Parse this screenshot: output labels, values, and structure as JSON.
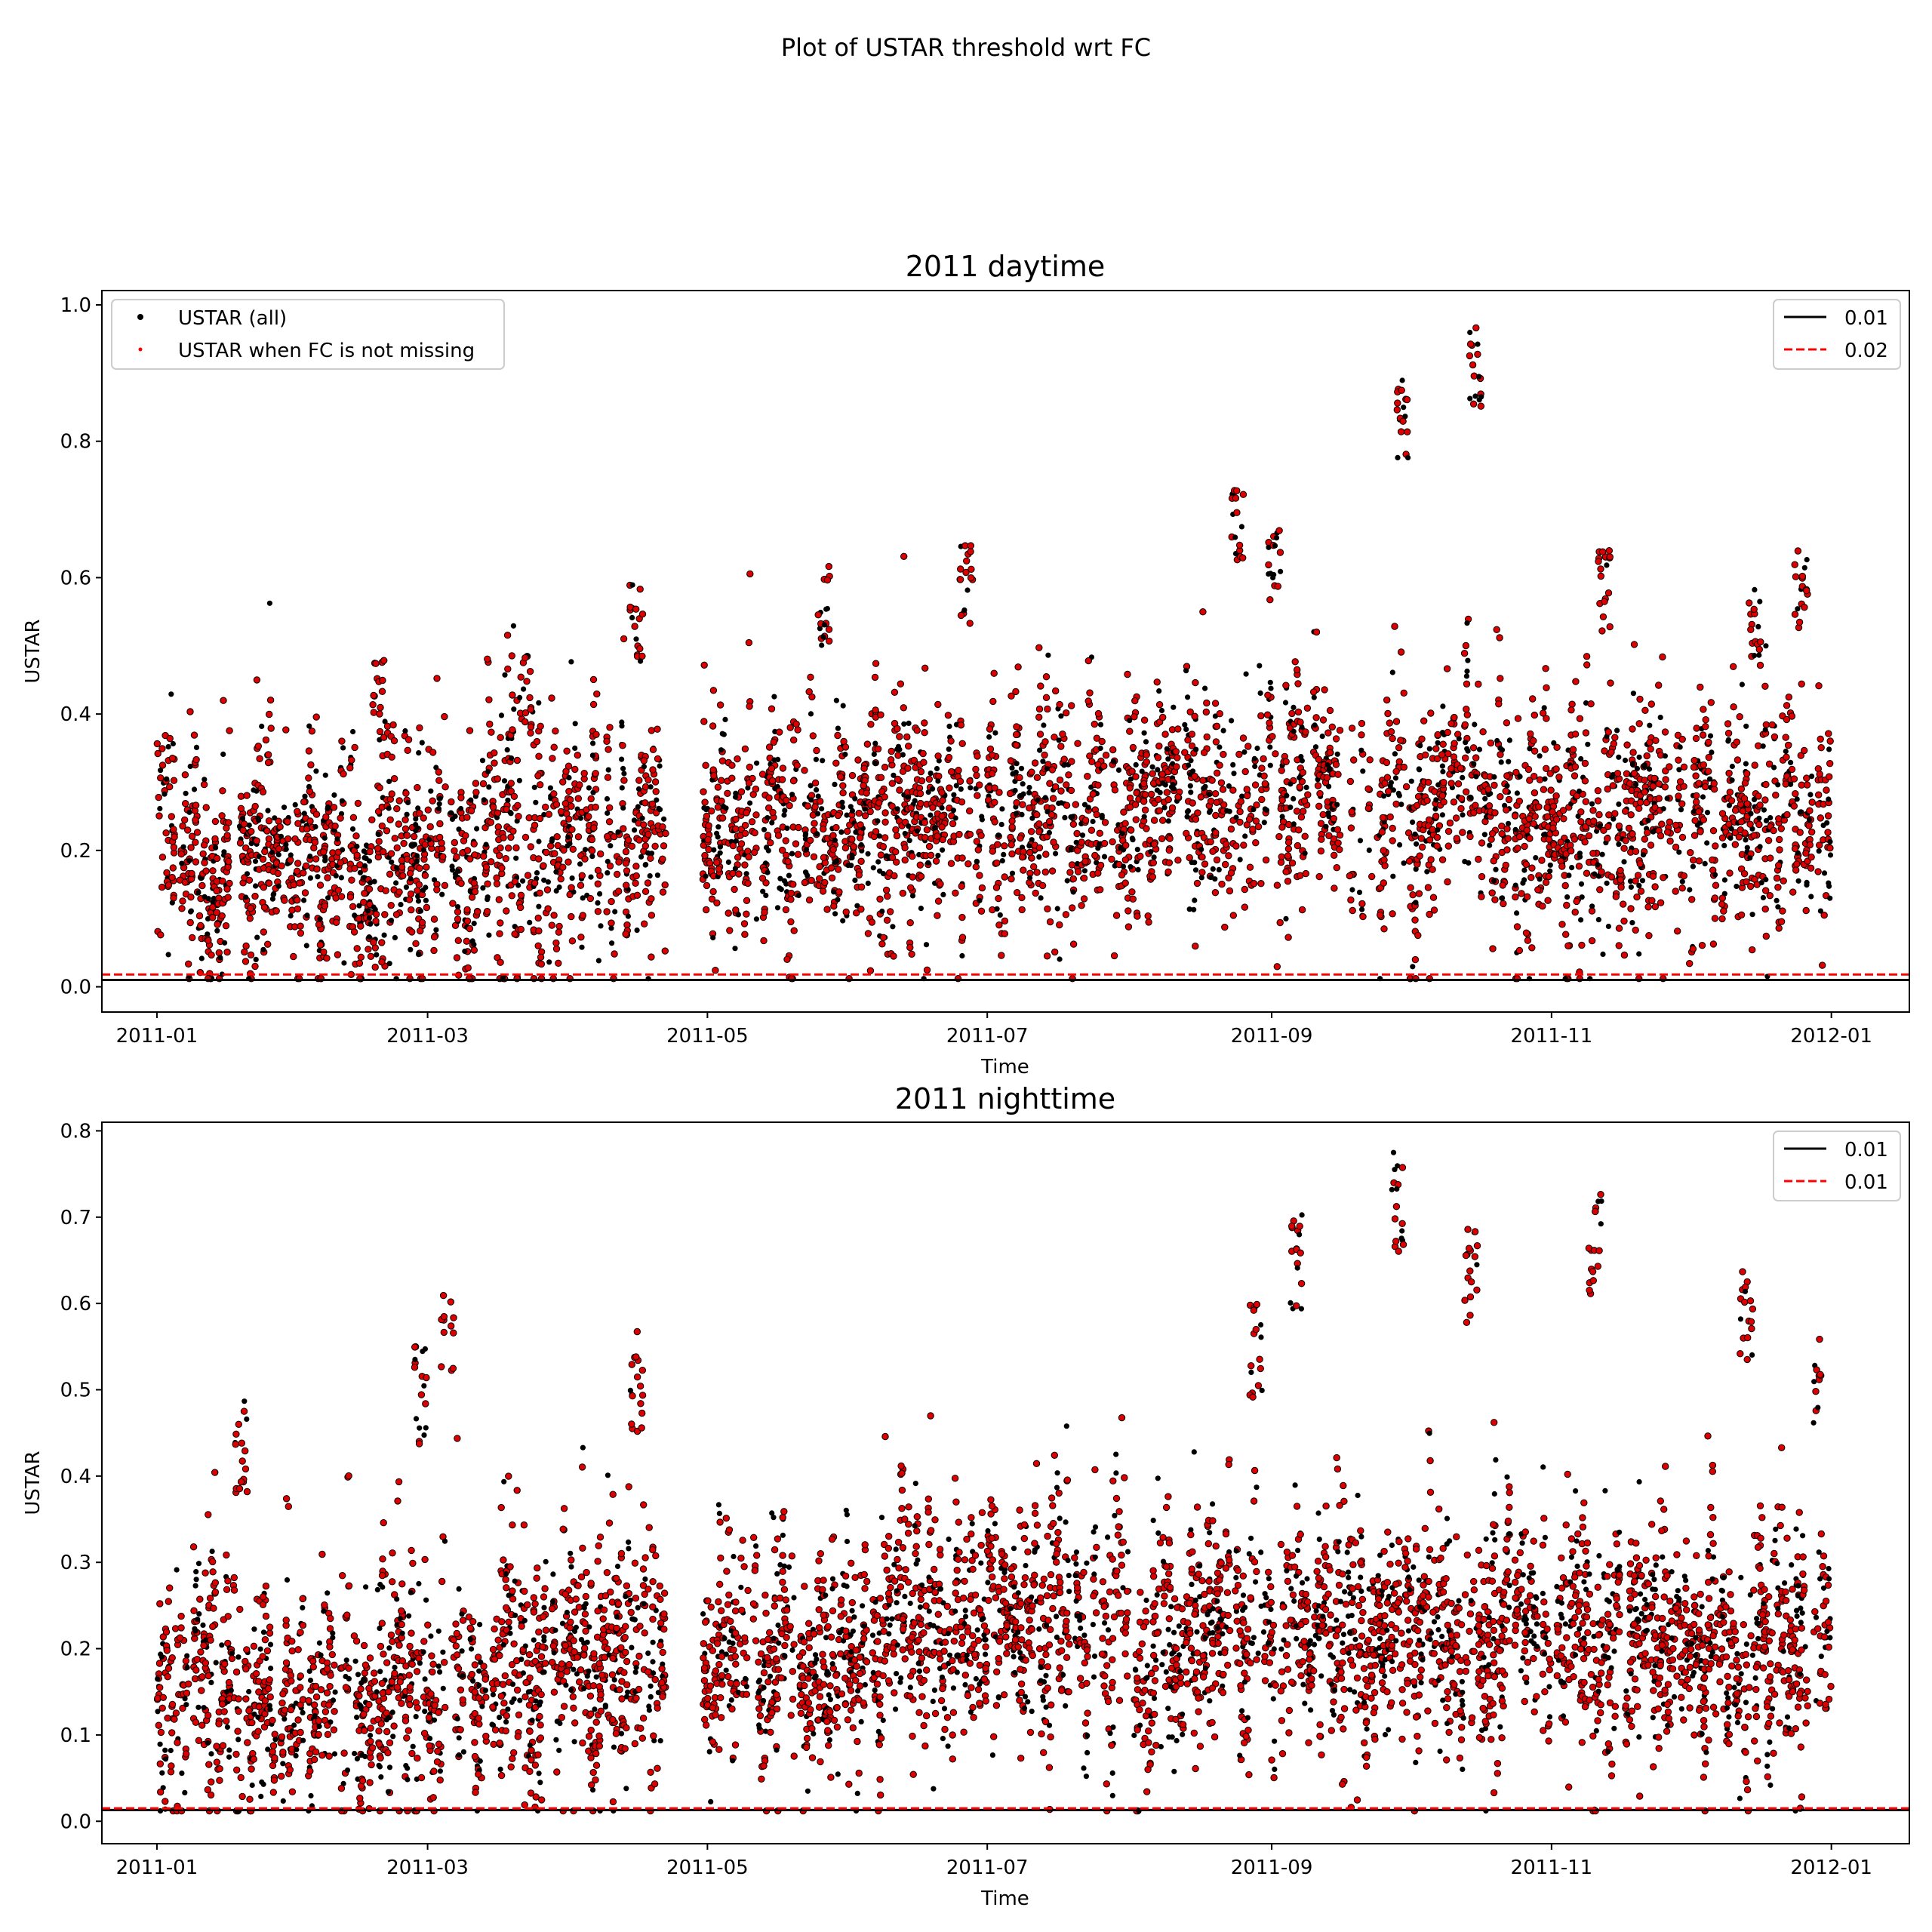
{
  "suptitle": "Plot of USTAR threshold wrt FC",
  "chart_data": [
    {
      "type": "scatter",
      "title": "2011 daytime",
      "xlabel": "Time",
      "ylabel": "USTAR",
      "xlim": [
        "2010-12-20",
        "2012-01-18"
      ],
      "ylim": [
        -0.037,
        1.021
      ],
      "x_ticks": [
        "2011-01",
        "2011-03",
        "2011-05",
        "2011-07",
        "2011-09",
        "2011-11",
        "2012-01"
      ],
      "y_ticks": [
        "0.0",
        "0.2",
        "0.4",
        "0.6",
        "0.8",
        "1.0"
      ],
      "series": [
        {
          "name": "USTAR (all)",
          "color": "#000000",
          "marker": "point"
        },
        {
          "name": "USTAR when FC is not missing",
          "color": "#ff0000",
          "marker": "point"
        }
      ],
      "threshold_lines": [
        {
          "label": "0.01",
          "value": 0.01,
          "color": "#000000",
          "style": "solid"
        },
        {
          "label": "0.02",
          "value": 0.018,
          "color": "#ff0000",
          "style": "dashed"
        }
      ],
      "data_gap": [
        "2011-04-21",
        "2011-04-30"
      ],
      "peaks": [
        {
          "date": "2011-01-02",
          "value": 0.37
        },
        {
          "date": "2011-02-18",
          "value": 0.48
        },
        {
          "date": "2011-03-22",
          "value": 0.5
        },
        {
          "date": "2011-04-15",
          "value": 0.59
        },
        {
          "date": "2011-05-26",
          "value": 0.62
        },
        {
          "date": "2011-06-26",
          "value": 0.65
        },
        {
          "date": "2011-08-24",
          "value": 0.74
        },
        {
          "date": "2011-09-01",
          "value": 0.67
        },
        {
          "date": "2011-09-29",
          "value": 0.89
        },
        {
          "date": "2011-10-15",
          "value": 0.97
        },
        {
          "date": "2011-11-12",
          "value": 0.64
        },
        {
          "date": "2011-12-15",
          "value": 0.59
        },
        {
          "date": "2011-12-25",
          "value": 0.64
        }
      ],
      "legend_position": "upper left (series), upper right (thresholds)"
    },
    {
      "type": "scatter",
      "title": "2011 nighttime",
      "xlabel": "Time",
      "ylabel": "USTAR",
      "xlim": [
        "2010-12-20",
        "2012-01-18"
      ],
      "ylim": [
        -0.026,
        0.81
      ],
      "x_ticks": [
        "2011-01",
        "2011-03",
        "2011-05",
        "2011-07",
        "2011-09",
        "2011-11",
        "2012-01"
      ],
      "y_ticks": [
        "0.0",
        "0.1",
        "0.2",
        "0.3",
        "0.4",
        "0.5",
        "0.6",
        "0.7",
        "0.8"
      ],
      "series": [
        {
          "name": "USTAR (all)",
          "color": "#000000",
          "marker": "point"
        },
        {
          "name": "USTAR when FC is not missing",
          "color": "#ff0000",
          "marker": "point"
        }
      ],
      "threshold_lines": [
        {
          "label": "0.01",
          "value": 0.013,
          "color": "#000000",
          "style": "solid"
        },
        {
          "label": "0.01",
          "value": 0.015,
          "color": "#ff0000",
          "style": "dashed"
        }
      ],
      "data_gap": [
        "2011-04-21",
        "2011-04-30"
      ],
      "peaks": [
        {
          "date": "2011-01-19",
          "value": 0.5
        },
        {
          "date": "2011-02-27",
          "value": 0.55
        },
        {
          "date": "2011-03-05",
          "value": 0.63
        },
        {
          "date": "2011-04-15",
          "value": 0.57
        },
        {
          "date": "2011-08-28",
          "value": 0.6
        },
        {
          "date": "2011-09-06",
          "value": 0.71
        },
        {
          "date": "2011-09-28",
          "value": 0.78
        },
        {
          "date": "2011-10-14",
          "value": 0.69
        },
        {
          "date": "2011-11-10",
          "value": 0.73
        },
        {
          "date": "2011-12-13",
          "value": 0.65
        },
        {
          "date": "2011-12-28",
          "value": 0.58
        }
      ],
      "legend_position": "upper right (thresholds)"
    }
  ]
}
